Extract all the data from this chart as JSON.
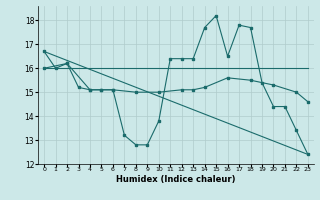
{
  "xlabel": "Humidex (Indice chaleur)",
  "bg_color": "#cce8e8",
  "grid_color": "#b0cccc",
  "line_color": "#1a6b6b",
  "xlim": [
    -0.5,
    23.5
  ],
  "ylim": [
    12,
    18.6
  ],
  "yticks": [
    12,
    13,
    14,
    15,
    16,
    17,
    18
  ],
  "xtick_labels": [
    "0",
    "1",
    "2",
    "3",
    "4",
    "5",
    "6",
    "7",
    "8",
    "9",
    "10",
    "11",
    "12",
    "13",
    "14",
    "15",
    "16",
    "17",
    "18",
    "19",
    "20",
    "21",
    "22",
    "23"
  ],
  "series1_x": [
    0,
    1,
    2,
    3,
    4,
    5,
    6,
    7,
    8,
    9,
    10,
    11,
    12,
    13,
    14,
    15,
    16,
    17,
    18,
    19,
    20,
    21,
    22,
    23
  ],
  "series1_y": [
    16.7,
    16.0,
    16.2,
    15.2,
    15.1,
    15.1,
    15.1,
    13.2,
    12.8,
    12.8,
    13.8,
    16.4,
    16.4,
    16.4,
    17.7,
    18.2,
    16.5,
    17.8,
    17.7,
    15.4,
    14.4,
    14.4,
    13.4,
    12.4
  ],
  "series2_x": [
    0,
    2,
    4,
    5,
    6,
    8,
    10,
    12,
    13,
    14,
    16,
    18,
    20,
    22,
    23
  ],
  "series2_y": [
    16.0,
    16.2,
    15.1,
    15.1,
    15.1,
    15.0,
    15.0,
    15.1,
    15.1,
    15.2,
    15.6,
    15.5,
    15.3,
    15.0,
    14.6
  ],
  "series3_x": [
    0,
    23
  ],
  "series3_y": [
    16.7,
    12.4
  ],
  "series4_x": [
    0,
    23
  ],
  "series4_y": [
    16.0,
    16.0
  ]
}
